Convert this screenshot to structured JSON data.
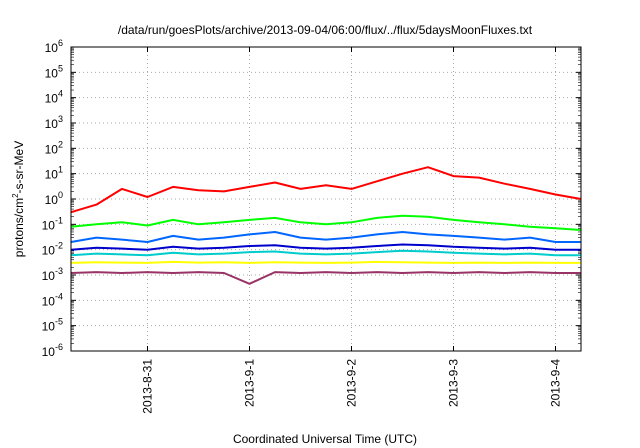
{
  "chart_data": {
    "type": "line",
    "title": "/data/run/goesPlots/archive/2013-09-04/06:00/flux/../flux/5daysMoonFluxes.txt",
    "xlabel": "Coordinated Universal Time (UTC)",
    "ylabel": {
      "base": "protons/cm",
      "sup": "2",
      "rest": "-s-sr-MeV"
    },
    "xlim": [
      "2013-08-30T06:00",
      "2013-09-04T06:00"
    ],
    "ylim": [
      1e-06,
      1000000.0
    ],
    "yscale": "log",
    "grid": true,
    "x_ticks": [
      {
        "value": "2013-08-31T00:00",
        "label": "2013-8-31"
      },
      {
        "value": "2013-09-01T00:00",
        "label": "2013-9-1"
      },
      {
        "value": "2013-09-02T00:00",
        "label": "2013-9-2"
      },
      {
        "value": "2013-09-03T00:00",
        "label": "2013-9-3"
      },
      {
        "value": "2013-09-04T00:00",
        "label": "2013-9-4"
      }
    ],
    "y_ticks": [
      {
        "exp": "-6"
      },
      {
        "exp": "-5"
      },
      {
        "exp": "-4"
      },
      {
        "exp": "-3"
      },
      {
        "exp": "-2"
      },
      {
        "exp": "-1"
      },
      {
        "exp": "0"
      },
      {
        "exp": "1"
      },
      {
        "exp": "2"
      },
      {
        "exp": "3"
      },
      {
        "exp": "4"
      },
      {
        "exp": "5"
      },
      {
        "exp": "6"
      }
    ],
    "series": [
      {
        "color": "#ff0000",
        "x": [
          "2013-08-30T06:00",
          "2013-08-30T12:00",
          "2013-08-30T18:00",
          "2013-08-31T00:00",
          "2013-08-31T06:00",
          "2013-08-31T12:00",
          "2013-08-31T18:00",
          "2013-09-01T00:00",
          "2013-09-01T06:00",
          "2013-09-01T12:00",
          "2013-09-01T18:00",
          "2013-09-02T00:00",
          "2013-09-02T06:00",
          "2013-09-02T12:00",
          "2013-09-02T18:00",
          "2013-09-03T00:00",
          "2013-09-03T06:00",
          "2013-09-03T12:00",
          "2013-09-03T18:00",
          "2013-09-04T00:00",
          "2013-09-04T06:00"
        ],
        "y": [
          0.3,
          0.6,
          2.5,
          1.2,
          3.0,
          2.2,
          2.0,
          3.0,
          4.5,
          2.5,
          3.5,
          2.5,
          5.0,
          10,
          18,
          8,
          7,
          4,
          2.5,
          1.5,
          1.0
        ]
      },
      {
        "color": "#00ff00",
        "x": [
          "2013-08-30T06:00",
          "2013-08-30T12:00",
          "2013-08-30T18:00",
          "2013-08-31T00:00",
          "2013-08-31T06:00",
          "2013-08-31T12:00",
          "2013-08-31T18:00",
          "2013-09-01T00:00",
          "2013-09-01T06:00",
          "2013-09-01T12:00",
          "2013-09-01T18:00",
          "2013-09-02T00:00",
          "2013-09-02T06:00",
          "2013-09-02T12:00",
          "2013-09-02T18:00",
          "2013-09-03T00:00",
          "2013-09-03T06:00",
          "2013-09-03T12:00",
          "2013-09-03T18:00",
          "2013-09-04T00:00",
          "2013-09-04T06:00"
        ],
        "y": [
          0.08,
          0.1,
          0.12,
          0.09,
          0.15,
          0.1,
          0.12,
          0.15,
          0.18,
          0.12,
          0.1,
          0.12,
          0.18,
          0.22,
          0.2,
          0.15,
          0.12,
          0.1,
          0.08,
          0.07,
          0.06
        ]
      },
      {
        "color": "#0066ff",
        "x": [
          "2013-08-30T06:00",
          "2013-08-30T12:00",
          "2013-08-30T18:00",
          "2013-08-31T00:00",
          "2013-08-31T06:00",
          "2013-08-31T12:00",
          "2013-08-31T18:00",
          "2013-09-01T00:00",
          "2013-09-01T06:00",
          "2013-09-01T12:00",
          "2013-09-01T18:00",
          "2013-09-02T00:00",
          "2013-09-02T06:00",
          "2013-09-02T12:00",
          "2013-09-02T18:00",
          "2013-09-03T00:00",
          "2013-09-03T06:00",
          "2013-09-03T12:00",
          "2013-09-03T18:00",
          "2013-09-04T00:00",
          "2013-09-04T06:00"
        ],
        "y": [
          0.02,
          0.03,
          0.025,
          0.02,
          0.035,
          0.025,
          0.03,
          0.04,
          0.05,
          0.03,
          0.025,
          0.03,
          0.04,
          0.05,
          0.04,
          0.035,
          0.03,
          0.025,
          0.03,
          0.02,
          0.02
        ]
      },
      {
        "color": "#0000cc",
        "x": [
          "2013-08-30T06:00",
          "2013-08-30T12:00",
          "2013-08-30T18:00",
          "2013-08-31T00:00",
          "2013-08-31T06:00",
          "2013-08-31T12:00",
          "2013-08-31T18:00",
          "2013-09-01T00:00",
          "2013-09-01T06:00",
          "2013-09-01T12:00",
          "2013-09-01T18:00",
          "2013-09-02T00:00",
          "2013-09-02T06:00",
          "2013-09-02T12:00",
          "2013-09-02T18:00",
          "2013-09-03T00:00",
          "2013-09-03T06:00",
          "2013-09-03T12:00",
          "2013-09-03T18:00",
          "2013-09-04T00:00",
          "2013-09-04T06:00"
        ],
        "y": [
          0.01,
          0.012,
          0.011,
          0.01,
          0.013,
          0.011,
          0.012,
          0.014,
          0.015,
          0.012,
          0.011,
          0.012,
          0.014,
          0.016,
          0.015,
          0.013,
          0.012,
          0.011,
          0.012,
          0.01,
          0.01
        ]
      },
      {
        "color": "#00cccc",
        "x": [
          "2013-08-30T06:00",
          "2013-08-30T12:00",
          "2013-08-30T18:00",
          "2013-08-31T00:00",
          "2013-08-31T06:00",
          "2013-08-31T12:00",
          "2013-08-31T18:00",
          "2013-09-01T00:00",
          "2013-09-01T06:00",
          "2013-09-01T12:00",
          "2013-09-01T18:00",
          "2013-09-02T00:00",
          "2013-09-02T06:00",
          "2013-09-02T12:00",
          "2013-09-02T18:00",
          "2013-09-03T00:00",
          "2013-09-03T06:00",
          "2013-09-03T12:00",
          "2013-09-03T18:00",
          "2013-09-04T00:00",
          "2013-09-04T06:00"
        ],
        "y": [
          0.006,
          0.007,
          0.0065,
          0.006,
          0.0075,
          0.0065,
          0.007,
          0.008,
          0.0085,
          0.007,
          0.0065,
          0.007,
          0.008,
          0.009,
          0.0085,
          0.0075,
          0.007,
          0.0065,
          0.007,
          0.006,
          0.006
        ]
      },
      {
        "color": "#ffff00",
        "x": [
          "2013-08-30T06:00",
          "2013-08-30T12:00",
          "2013-08-30T18:00",
          "2013-08-31T00:00",
          "2013-08-31T06:00",
          "2013-08-31T12:00",
          "2013-08-31T18:00",
          "2013-09-01T00:00",
          "2013-09-01T06:00",
          "2013-09-01T12:00",
          "2013-09-01T18:00",
          "2013-09-02T00:00",
          "2013-09-02T06:00",
          "2013-09-02T12:00",
          "2013-09-02T18:00",
          "2013-09-03T00:00",
          "2013-09-03T06:00",
          "2013-09-03T12:00",
          "2013-09-03T18:00",
          "2013-09-04T00:00",
          "2013-09-04T06:00"
        ],
        "y": [
          0.003,
          0.0032,
          0.0031,
          0.003,
          0.0033,
          0.0031,
          0.0032,
          0.003,
          0.0032,
          0.0031,
          0.003,
          0.0031,
          0.0033,
          0.0032,
          0.0031,
          0.003,
          0.0031,
          0.003,
          0.0031,
          0.003,
          0.003
        ]
      },
      {
        "color": "#993366",
        "x": [
          "2013-08-30T06:00",
          "2013-08-30T12:00",
          "2013-08-30T18:00",
          "2013-08-31T00:00",
          "2013-08-31T06:00",
          "2013-08-31T12:00",
          "2013-08-31T18:00",
          "2013-09-01T00:00",
          "2013-09-01T06:00",
          "2013-09-01T12:00",
          "2013-09-01T18:00",
          "2013-09-02T00:00",
          "2013-09-02T06:00",
          "2013-09-02T12:00",
          "2013-09-02T18:00",
          "2013-09-03T00:00",
          "2013-09-03T06:00",
          "2013-09-03T12:00",
          "2013-09-03T18:00",
          "2013-09-04T00:00",
          "2013-09-04T06:00"
        ],
        "y": [
          0.0012,
          0.0013,
          0.0012,
          0.0013,
          0.0012,
          0.0013,
          0.0012,
          0.00045,
          0.0013,
          0.0012,
          0.0013,
          0.0012,
          0.0013,
          0.0012,
          0.0013,
          0.0012,
          0.0013,
          0.0012,
          0.0013,
          0.0012,
          0.0012
        ]
      }
    ]
  }
}
